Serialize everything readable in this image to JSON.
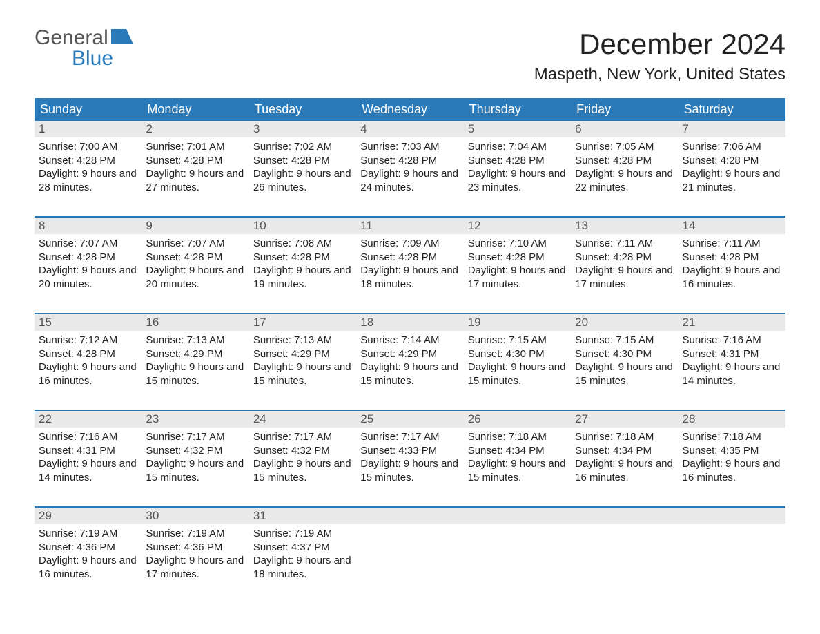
{
  "logo": {
    "line1": "General",
    "line2": "Blue",
    "shape_color": "#2a7ab9"
  },
  "title": "December 2024",
  "location": "Maspeth, New York, United States",
  "colors": {
    "header_bg": "#2a7ab9",
    "header_text": "#ffffff",
    "date_bg": "#e9e9e9",
    "body_text": "#222222",
    "rule": "#2a7ab9"
  },
  "day_names": [
    "Sunday",
    "Monday",
    "Tuesday",
    "Wednesday",
    "Thursday",
    "Friday",
    "Saturday"
  ],
  "weeks": [
    [
      {
        "date": "1",
        "sunrise": "7:00 AM",
        "sunset": "4:28 PM",
        "daylight": "9 hours and 28 minutes."
      },
      {
        "date": "2",
        "sunrise": "7:01 AM",
        "sunset": "4:28 PM",
        "daylight": "9 hours and 27 minutes."
      },
      {
        "date": "3",
        "sunrise": "7:02 AM",
        "sunset": "4:28 PM",
        "daylight": "9 hours and 26 minutes."
      },
      {
        "date": "4",
        "sunrise": "7:03 AM",
        "sunset": "4:28 PM",
        "daylight": "9 hours and 24 minutes."
      },
      {
        "date": "5",
        "sunrise": "7:04 AM",
        "sunset": "4:28 PM",
        "daylight": "9 hours and 23 minutes."
      },
      {
        "date": "6",
        "sunrise": "7:05 AM",
        "sunset": "4:28 PM",
        "daylight": "9 hours and 22 minutes."
      },
      {
        "date": "7",
        "sunrise": "7:06 AM",
        "sunset": "4:28 PM",
        "daylight": "9 hours and 21 minutes."
      }
    ],
    [
      {
        "date": "8",
        "sunrise": "7:07 AM",
        "sunset": "4:28 PM",
        "daylight": "9 hours and 20 minutes."
      },
      {
        "date": "9",
        "sunrise": "7:07 AM",
        "sunset": "4:28 PM",
        "daylight": "9 hours and 20 minutes."
      },
      {
        "date": "10",
        "sunrise": "7:08 AM",
        "sunset": "4:28 PM",
        "daylight": "9 hours and 19 minutes."
      },
      {
        "date": "11",
        "sunrise": "7:09 AM",
        "sunset": "4:28 PM",
        "daylight": "9 hours and 18 minutes."
      },
      {
        "date": "12",
        "sunrise": "7:10 AM",
        "sunset": "4:28 PM",
        "daylight": "9 hours and 17 minutes."
      },
      {
        "date": "13",
        "sunrise": "7:11 AM",
        "sunset": "4:28 PM",
        "daylight": "9 hours and 17 minutes."
      },
      {
        "date": "14",
        "sunrise": "7:11 AM",
        "sunset": "4:28 PM",
        "daylight": "9 hours and 16 minutes."
      }
    ],
    [
      {
        "date": "15",
        "sunrise": "7:12 AM",
        "sunset": "4:28 PM",
        "daylight": "9 hours and 16 minutes."
      },
      {
        "date": "16",
        "sunrise": "7:13 AM",
        "sunset": "4:29 PM",
        "daylight": "9 hours and 15 minutes."
      },
      {
        "date": "17",
        "sunrise": "7:13 AM",
        "sunset": "4:29 PM",
        "daylight": "9 hours and 15 minutes."
      },
      {
        "date": "18",
        "sunrise": "7:14 AM",
        "sunset": "4:29 PM",
        "daylight": "9 hours and 15 minutes."
      },
      {
        "date": "19",
        "sunrise": "7:15 AM",
        "sunset": "4:30 PM",
        "daylight": "9 hours and 15 minutes."
      },
      {
        "date": "20",
        "sunrise": "7:15 AM",
        "sunset": "4:30 PM",
        "daylight": "9 hours and 15 minutes."
      },
      {
        "date": "21",
        "sunrise": "7:16 AM",
        "sunset": "4:31 PM",
        "daylight": "9 hours and 14 minutes."
      }
    ],
    [
      {
        "date": "22",
        "sunrise": "7:16 AM",
        "sunset": "4:31 PM",
        "daylight": "9 hours and 14 minutes."
      },
      {
        "date": "23",
        "sunrise": "7:17 AM",
        "sunset": "4:32 PM",
        "daylight": "9 hours and 15 minutes."
      },
      {
        "date": "24",
        "sunrise": "7:17 AM",
        "sunset": "4:32 PM",
        "daylight": "9 hours and 15 minutes."
      },
      {
        "date": "25",
        "sunrise": "7:17 AM",
        "sunset": "4:33 PM",
        "daylight": "9 hours and 15 minutes."
      },
      {
        "date": "26",
        "sunrise": "7:18 AM",
        "sunset": "4:34 PM",
        "daylight": "9 hours and 15 minutes."
      },
      {
        "date": "27",
        "sunrise": "7:18 AM",
        "sunset": "4:34 PM",
        "daylight": "9 hours and 16 minutes."
      },
      {
        "date": "28",
        "sunrise": "7:18 AM",
        "sunset": "4:35 PM",
        "daylight": "9 hours and 16 minutes."
      }
    ],
    [
      {
        "date": "29",
        "sunrise": "7:19 AM",
        "sunset": "4:36 PM",
        "daylight": "9 hours and 16 minutes."
      },
      {
        "date": "30",
        "sunrise": "7:19 AM",
        "sunset": "4:36 PM",
        "daylight": "9 hours and 17 minutes."
      },
      {
        "date": "31",
        "sunrise": "7:19 AM",
        "sunset": "4:37 PM",
        "daylight": "9 hours and 18 minutes."
      },
      null,
      null,
      null,
      null
    ]
  ],
  "labels": {
    "sunrise": "Sunrise:",
    "sunset": "Sunset:",
    "daylight": "Daylight:"
  }
}
